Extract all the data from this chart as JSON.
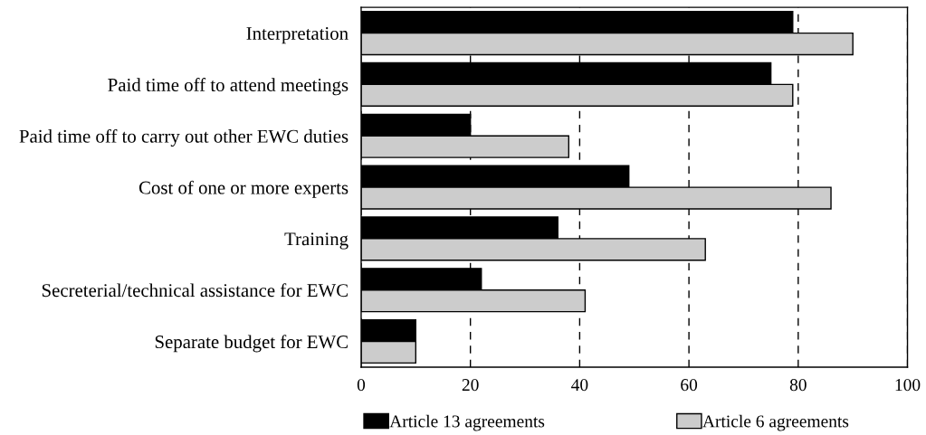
{
  "chart_data": {
    "type": "bar",
    "orientation": "horizontal",
    "categories": [
      "Interpretation",
      "Paid time off to attend meetings",
      "Paid time off to carry out other EWC duties",
      "Cost of one or more experts",
      "Training",
      "Secreterial/technical assistance for EWC",
      "Separate budget for EWC"
    ],
    "series": [
      {
        "name": "Article 13 agreements",
        "color": "#000000",
        "values": [
          79,
          75,
          20,
          49,
          36,
          22,
          10
        ]
      },
      {
        "name": "Article 6 agreements",
        "color": "#cccccc",
        "values": [
          90,
          79,
          38,
          86,
          63,
          41,
          10
        ]
      }
    ],
    "xlim": [
      0,
      100
    ],
    "xticks": [
      0,
      20,
      40,
      60,
      80,
      100
    ],
    "grid": "x",
    "legend": "bottom"
  }
}
